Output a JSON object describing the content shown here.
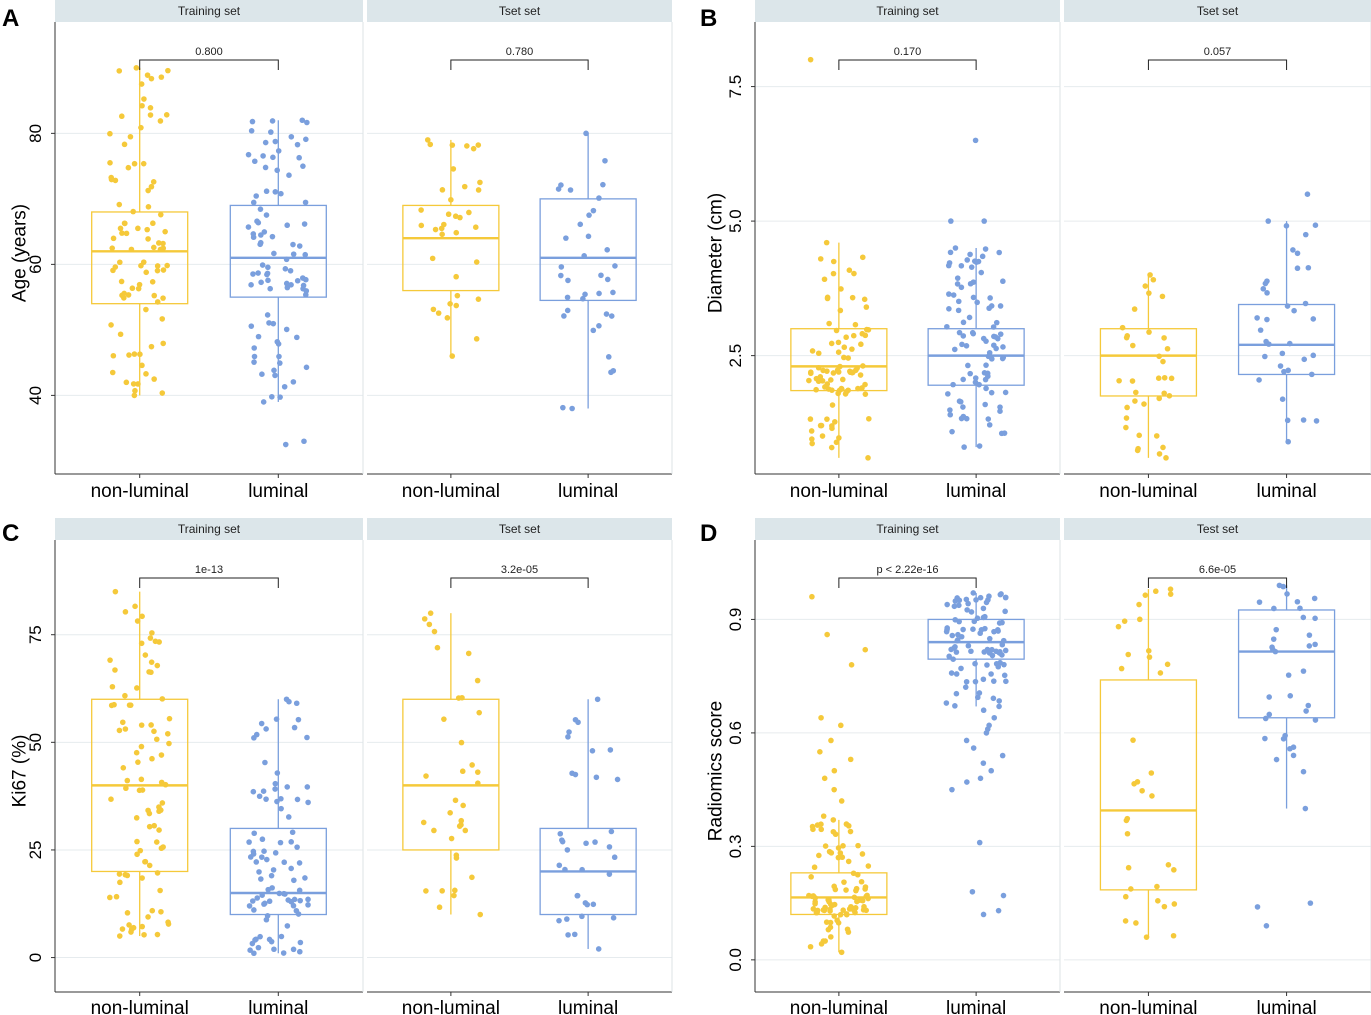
{
  "colors": {
    "non_luminal": "#F5C93A",
    "luminal": "#7A9FDD",
    "strip_bg": "#DCE6EA",
    "grid": "#E6EBEE",
    "axis": "#333333"
  },
  "chart_data": [
    {
      "type": "boxplot",
      "panel_label": "A",
      "ylabel": "Age (years)",
      "ylim": [
        28,
        97
      ],
      "yticks": [
        40,
        60,
        80
      ],
      "ytick_labels": [
        "40",
        "60",
        "80"
      ],
      "categories": [
        "non-luminal",
        "luminal"
      ],
      "facets": [
        {
          "title": "Training set",
          "p_value": "0.800",
          "boxes": [
            {
              "group": "non-luminal",
              "min": 40,
              "q1": 54,
              "median": 62,
              "q3": 68,
              "max": 90
            },
            {
              "group": "luminal",
              "min": 39,
              "q1": 55,
              "median": 61,
              "q3": 69,
              "max": 82
            }
          ],
          "outliers": [
            {
              "group": "luminal",
              "values": [
                33,
                32.5
              ]
            }
          ]
        },
        {
          "title": "Tset set",
          "p_value": "0.780",
          "boxes": [
            {
              "group": "non-luminal",
              "min": 46,
              "q1": 56,
              "median": 64,
              "q3": 69,
              "max": 79
            },
            {
              "group": "luminal",
              "min": 38,
              "q1": 54.5,
              "median": 61,
              "q3": 70,
              "max": 80
            }
          ],
          "outliers": []
        }
      ]
    },
    {
      "type": "boxplot",
      "panel_label": "B",
      "ylabel": "Diameter (cm)",
      "ylim": [
        0.3,
        8.7
      ],
      "yticks": [
        2.5,
        5.0,
        7.5
      ],
      "ytick_labels": [
        "2.5",
        "5.0",
        "7.5"
      ],
      "categories": [
        "non-luminal",
        "luminal"
      ],
      "facets": [
        {
          "title": "Training set",
          "p_value": "0.170",
          "boxes": [
            {
              "group": "non-luminal",
              "min": 0.6,
              "q1": 1.85,
              "median": 2.3,
              "q3": 3.0,
              "max": 4.6
            },
            {
              "group": "luminal",
              "min": 0.8,
              "q1": 1.95,
              "median": 2.5,
              "q3": 3.0,
              "max": 4.5
            }
          ],
          "outliers": [
            {
              "group": "non-luminal",
              "values": [
                8.0
              ]
            },
            {
              "group": "luminal",
              "values": [
                6.5,
                5.0,
                5.0
              ]
            }
          ]
        },
        {
          "title": "Tset set",
          "p_value": "0.057",
          "boxes": [
            {
              "group": "non-luminal",
              "min": 0.6,
              "q1": 1.75,
              "median": 2.5,
              "q3": 3.0,
              "max": 4.0
            },
            {
              "group": "luminal",
              "min": 0.9,
              "q1": 2.15,
              "median": 2.7,
              "q3": 3.45,
              "max": 5.0
            }
          ],
          "outliers": [
            {
              "group": "luminal",
              "values": [
                5.5
              ]
            }
          ]
        }
      ]
    },
    {
      "type": "boxplot",
      "panel_label": "C",
      "ylabel": "Ki67 (%)",
      "ylim": [
        -8,
        97
      ],
      "yticks": [
        0,
        25,
        50,
        75
      ],
      "ytick_labels": [
        "0",
        "25",
        "50",
        "75"
      ],
      "categories": [
        "non-luminal",
        "luminal"
      ],
      "facets": [
        {
          "title": "Training set",
          "p_value": "1e-13",
          "boxes": [
            {
              "group": "non-luminal",
              "min": 5,
              "q1": 20,
              "median": 40,
              "q3": 60,
              "max": 85
            },
            {
              "group": "luminal",
              "min": 1,
              "q1": 10,
              "median": 15,
              "q3": 30,
              "max": 60
            }
          ],
          "outliers": []
        },
        {
          "title": "Tset set",
          "p_value": "3.2e-05",
          "boxes": [
            {
              "group": "non-luminal",
              "min": 10,
              "q1": 25,
              "median": 40,
              "q3": 60,
              "max": 80
            },
            {
              "group": "luminal",
              "min": 2,
              "q1": 10,
              "median": 20,
              "q3": 30,
              "max": 60
            }
          ],
          "outliers": []
        }
      ]
    },
    {
      "type": "boxplot",
      "panel_label": "D",
      "ylabel": "Radiomics score",
      "ylim": [
        -0.085,
        1.11
      ],
      "yticks": [
        0.0,
        0.3,
        0.6,
        0.9
      ],
      "ytick_labels": [
        "0.0",
        "0.3",
        "0.6",
        "0.9"
      ],
      "categories": [
        "non-luminal",
        "luminal"
      ],
      "facets": [
        {
          "title": "Training set",
          "p_value": "p < 2.22e-16",
          "boxes": [
            {
              "group": "non-luminal",
              "min": 0.02,
              "q1": 0.12,
              "median": 0.165,
              "q3": 0.23,
              "max": 0.37
            },
            {
              "group": "luminal",
              "min": 0.67,
              "q1": 0.795,
              "median": 0.84,
              "q3": 0.9,
              "max": 0.97
            }
          ],
          "outliers": [
            {
              "group": "non-luminal",
              "values": [
                0.38,
                0.42,
                0.45,
                0.48,
                0.5,
                0.53,
                0.55,
                0.58,
                0.62,
                0.64,
                0.78,
                0.82,
                0.86,
                0.96
              ]
            },
            {
              "group": "luminal",
              "values": [
                0.12,
                0.13,
                0.17,
                0.18,
                0.31,
                0.45,
                0.47,
                0.48,
                0.5,
                0.52,
                0.54,
                0.56,
                0.58,
                0.6,
                0.61,
                0.62,
                0.64,
                0.66
              ]
            }
          ]
        },
        {
          "title": "Test set",
          "p_value": "6.6e-05",
          "boxes": [
            {
              "group": "non-luminal",
              "min": 0.06,
              "q1": 0.185,
              "median": 0.395,
              "q3": 0.74,
              "max": 0.98
            },
            {
              "group": "luminal",
              "min": 0.4,
              "q1": 0.64,
              "median": 0.815,
              "q3": 0.925,
              "max": 0.99
            }
          ],
          "outliers": [
            {
              "group": "luminal",
              "values": [
                0.09,
                0.14,
                0.15
              ]
            }
          ]
        }
      ]
    }
  ]
}
